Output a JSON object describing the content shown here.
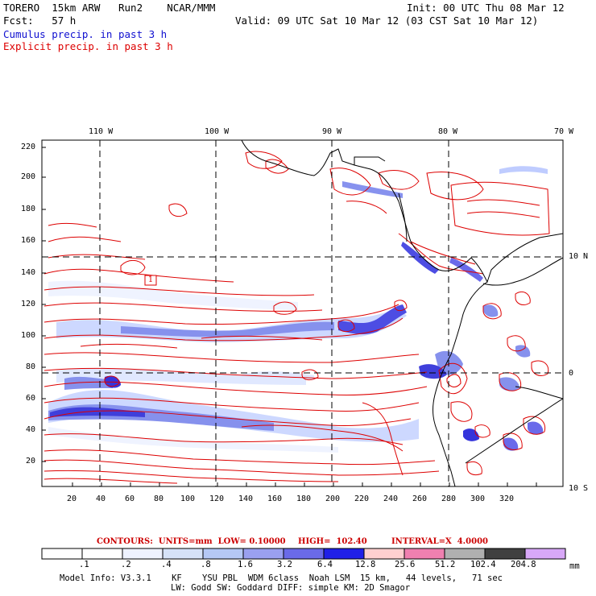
{
  "header": {
    "title_left": "TORERO  15km ARW   Run2    NCAR/MMM",
    "init": "Init: 00 UTC Thu 08 Mar 12",
    "fcst": "Fcst:   57 h",
    "valid": "Valid: 09 UTC Sat 10 Mar 12 (03 CST Sat 10 Mar 12)",
    "field1": "Cumulus precip. in past 3 h",
    "field2": "Explicit precip. in past 3 h",
    "field1_color": "#1010d0",
    "field2_color": "#dd0000"
  },
  "map": {
    "lon_labels": [
      "110 W",
      "100 W",
      "90 W",
      "80 W",
      "70 W"
    ],
    "lat_labels": [
      "10 N",
      "0",
      "10 S"
    ],
    "y_ticks": [
      "220",
      "200",
      "180",
      "160",
      "140",
      "120",
      "100",
      "80",
      "60",
      "40",
      "20"
    ],
    "x_ticks": [
      "20",
      "40",
      "60",
      "80",
      "100",
      "120",
      "140",
      "160",
      "180",
      "200",
      "220",
      "240",
      "260",
      "280",
      "300",
      "320"
    ],
    "box_label": "1",
    "contour_color": "#dd0000",
    "shade_colors": [
      "#dde6ff",
      "#b8c6ff",
      "#8a96f0",
      "#5a5ae8",
      "#1f1fd8"
    ]
  },
  "contours_line": {
    "label": "CONTOURS:  UNITS=mm  LOW= 0.10000",
    "high": "HIGH=  102.40",
    "interval": "INTERVAL=X  4.0000"
  },
  "colorbar": {
    "labels": [
      ".1",
      ".2",
      ".4",
      ".8",
      "1.6",
      "3.2",
      "6.4",
      "12.8",
      "25.6",
      "51.2",
      "102.4",
      "204.8"
    ],
    "unit": "mm",
    "colors": [
      "#ffffff",
      "#ffffff",
      "#eef2ff",
      "#d6e2f8",
      "#b5c8f5",
      "#9aa0f0",
      "#6a6ae8",
      "#2020e8",
      "#ffd0d0",
      "#f080b0",
      "#b0b0b0",
      "#404040",
      "#d8a8f8"
    ]
  },
  "footer": {
    "line1": "Model Info: V3.3.1    KF    YSU PBL  WDM 6class  Noah LSM  15 km,   44 levels,   71 sec",
    "line2": "LW: Godd SW: Goddard DIFF: simple KM: 2D Smagor"
  }
}
